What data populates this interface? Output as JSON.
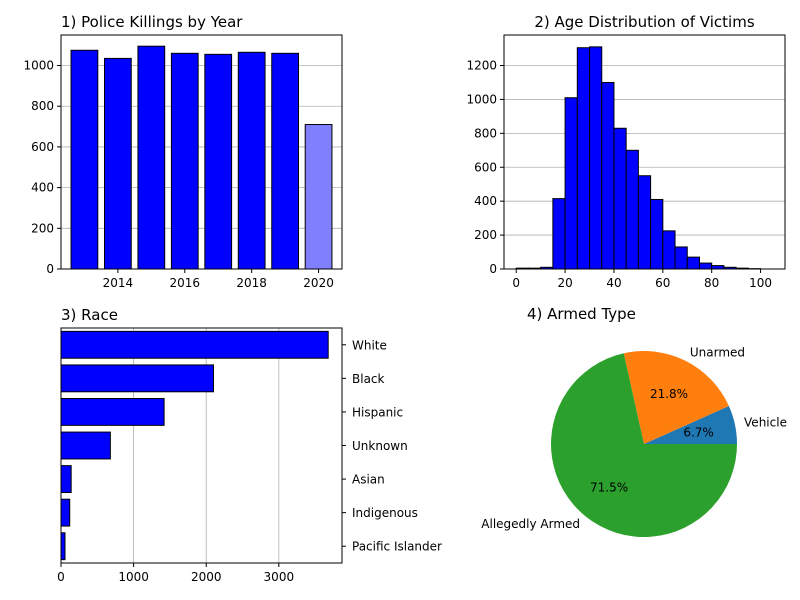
{
  "chart_data": [
    {
      "type": "bar",
      "title": "1) Police Killings by Year",
      "xlabel": "",
      "ylabel": "",
      "x": [
        2013,
        2014,
        2015,
        2016,
        2017,
        2018,
        2019,
        2020
      ],
      "values": [
        1075,
        1035,
        1095,
        1060,
        1055,
        1065,
        1060,
        710
      ],
      "colors": [
        "#0000ff",
        "#0000ff",
        "#0000ff",
        "#0000ff",
        "#0000ff",
        "#0000ff",
        "#0000ff",
        "#8080ff"
      ],
      "xlim": [
        2012.3,
        2020.7
      ],
      "ylim": [
        0,
        1150
      ],
      "xticks": [
        2014,
        2016,
        2018,
        2020
      ],
      "yticks": [
        0,
        200,
        400,
        600,
        800,
        1000
      ],
      "grid": "y"
    },
    {
      "type": "bar",
      "title": "2) Age Distribution of Victims",
      "xlabel": "",
      "ylabel": "",
      "bin_edges": [
        0,
        5,
        10,
        15,
        20,
        25,
        30,
        35,
        40,
        45,
        50,
        55,
        60,
        65,
        70,
        75,
        80,
        85,
        90,
        95,
        100,
        105
      ],
      "values": [
        5,
        5,
        10,
        415,
        1010,
        1305,
        1310,
        1100,
        830,
        700,
        550,
        410,
        225,
        130,
        70,
        35,
        20,
        10,
        5,
        2,
        0
      ],
      "color": "#0000ff",
      "xlim": [
        -5,
        110
      ],
      "ylim": [
        0,
        1380
      ],
      "xticks": [
        0,
        20,
        40,
        60,
        80,
        100
      ],
      "yticks": [
        0,
        200,
        400,
        600,
        800,
        1000,
        1200
      ],
      "grid": "y"
    },
    {
      "type": "bar",
      "orientation": "horizontal",
      "title": "3) Race",
      "xlabel": "",
      "ylabel": "",
      "categories": [
        "White",
        "Black",
        "Hispanic",
        "Unknown",
        "Asian",
        "Indigenous",
        "Pacific Islander"
      ],
      "values": [
        3680,
        2100,
        1420,
        680,
        140,
        120,
        55
      ],
      "color": "#0000ff",
      "xlim": [
        0,
        3870
      ],
      "xticks": [
        0,
        1000,
        2000,
        3000
      ],
      "grid": "x",
      "tick_side": "right"
    },
    {
      "type": "pie",
      "title": "4) Armed Type",
      "categories": [
        "Vehicle",
        "Unarmed",
        "Allegedly Armed"
      ],
      "values": [
        6.7,
        21.8,
        71.5
      ],
      "labels": [
        "6.7%",
        "21.8%",
        "71.5%"
      ],
      "colors": [
        "#1f77b4",
        "#ff7f0e",
        "#2ca02c"
      ]
    }
  ]
}
